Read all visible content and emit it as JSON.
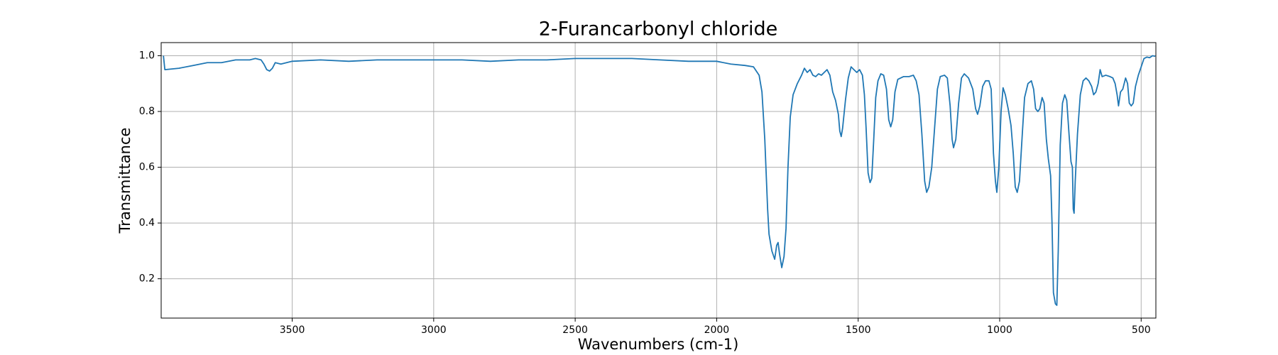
{
  "chart_data": {
    "type": "line",
    "title": "2-Furancarbonyl chloride",
    "xlabel": "Wavenumbers (cm-1)",
    "ylabel": "Transmittance",
    "color": "#1f77b4",
    "grid": true,
    "xlim": [
      3963,
      448
    ],
    "ylim": [
      0.059,
      1.047
    ],
    "xticks": [
      3500,
      3000,
      2500,
      2000,
      1500,
      1000,
      500
    ],
    "yticks": [
      0.2,
      0.4,
      0.6,
      0.8,
      {
        "value": 1,
        "label": "1.0"
      }
    ],
    "x": [
      3955,
      3950,
      3900,
      3850,
      3800,
      3750,
      3700,
      3650,
      3630,
      3610,
      3600,
      3590,
      3580,
      3570,
      3560,
      3540,
      3500,
      3400,
      3300,
      3200,
      3100,
      3000,
      2900,
      2800,
      2700,
      2600,
      2500,
      2400,
      2300,
      2200,
      2100,
      2000,
      1950,
      1900,
      1870,
      1850,
      1840,
      1830,
      1820,
      1815,
      1805,
      1795,
      1788,
      1783,
      1778,
      1770,
      1762,
      1755,
      1748,
      1740,
      1730,
      1715,
      1700,
      1690,
      1680,
      1670,
      1660,
      1650,
      1640,
      1630,
      1620,
      1610,
      1600,
      1590,
      1580,
      1570,
      1565,
      1560,
      1555,
      1545,
      1535,
      1525,
      1515,
      1505,
      1495,
      1485,
      1478,
      1472,
      1465,
      1458,
      1452,
      1445,
      1438,
      1430,
      1420,
      1410,
      1400,
      1392,
      1385,
      1378,
      1370,
      1360,
      1340,
      1320,
      1305,
      1295,
      1285,
      1275,
      1265,
      1258,
      1250,
      1240,
      1230,
      1220,
      1210,
      1195,
      1185,
      1175,
      1168,
      1163,
      1155,
      1145,
      1135,
      1125,
      1110,
      1095,
      1085,
      1078,
      1070,
      1060,
      1050,
      1038,
      1030,
      1022,
      1015,
      1010,
      1003,
      995,
      988,
      980,
      970,
      960,
      952,
      945,
      938,
      930,
      920,
      912,
      900,
      888,
      880,
      873,
      865,
      858,
      850,
      843,
      835,
      828,
      820,
      815,
      810,
      803,
      798,
      793,
      786,
      778,
      770,
      763,
      755,
      748,
      743,
      740,
      737,
      733,
      725,
      715,
      705,
      695,
      685,
      675,
      668,
      660,
      652,
      645,
      638,
      625,
      610,
      600,
      592,
      585,
      580,
      573,
      565,
      555,
      548,
      542,
      535,
      528,
      520,
      510,
      500,
      490,
      480,
      470,
      460,
      450
    ],
    "values": [
      1.0,
      0.95,
      0.955,
      0.965,
      0.975,
      0.975,
      0.985,
      0.985,
      0.99,
      0.985,
      0.97,
      0.95,
      0.945,
      0.955,
      0.975,
      0.97,
      0.98,
      0.985,
      0.98,
      0.985,
      0.985,
      0.985,
      0.985,
      0.98,
      0.985,
      0.985,
      0.99,
      0.99,
      0.99,
      0.985,
      0.98,
      0.98,
      0.97,
      0.965,
      0.96,
      0.93,
      0.87,
      0.7,
      0.45,
      0.36,
      0.3,
      0.27,
      0.32,
      0.33,
      0.29,
      0.24,
      0.28,
      0.38,
      0.6,
      0.78,
      0.86,
      0.9,
      0.93,
      0.955,
      0.94,
      0.95,
      0.93,
      0.925,
      0.935,
      0.93,
      0.94,
      0.95,
      0.93,
      0.87,
      0.84,
      0.79,
      0.73,
      0.71,
      0.74,
      0.84,
      0.92,
      0.96,
      0.95,
      0.94,
      0.95,
      0.93,
      0.86,
      0.74,
      0.58,
      0.545,
      0.56,
      0.7,
      0.85,
      0.91,
      0.935,
      0.93,
      0.88,
      0.77,
      0.745,
      0.77,
      0.87,
      0.915,
      0.925,
      0.925,
      0.93,
      0.91,
      0.86,
      0.72,
      0.55,
      0.51,
      0.53,
      0.6,
      0.74,
      0.88,
      0.925,
      0.93,
      0.92,
      0.82,
      0.7,
      0.67,
      0.7,
      0.83,
      0.92,
      0.935,
      0.92,
      0.88,
      0.81,
      0.79,
      0.82,
      0.89,
      0.91,
      0.91,
      0.88,
      0.65,
      0.55,
      0.51,
      0.6,
      0.8,
      0.885,
      0.86,
      0.81,
      0.75,
      0.65,
      0.53,
      0.51,
      0.55,
      0.72,
      0.85,
      0.9,
      0.91,
      0.88,
      0.81,
      0.8,
      0.81,
      0.85,
      0.83,
      0.7,
      0.63,
      0.57,
      0.4,
      0.15,
      0.11,
      0.105,
      0.3,
      0.68,
      0.83,
      0.86,
      0.84,
      0.72,
      0.62,
      0.6,
      0.45,
      0.435,
      0.55,
      0.72,
      0.86,
      0.91,
      0.92,
      0.91,
      0.89,
      0.86,
      0.87,
      0.9,
      0.95,
      0.925,
      0.93,
      0.925,
      0.92,
      0.9,
      0.86,
      0.82,
      0.87,
      0.88,
      0.92,
      0.9,
      0.83,
      0.82,
      0.83,
      0.89,
      0.93,
      0.96,
      0.99,
      0.995,
      0.993,
      1.0,
      0.998
    ]
  }
}
